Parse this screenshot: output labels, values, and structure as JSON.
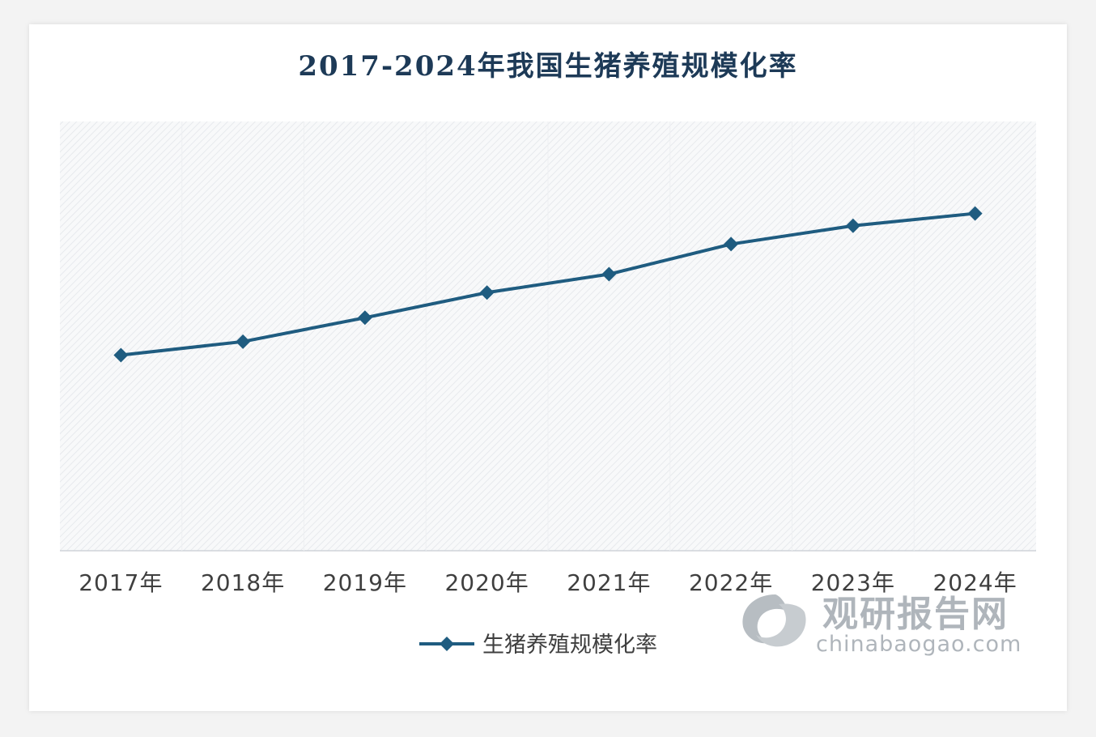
{
  "chart_data": {
    "type": "line",
    "title": "2017-2024年我国生猪养殖规模化率",
    "categories": [
      "2017年",
      "2018年",
      "2019年",
      "2020年",
      "2021年",
      "2022年",
      "2023年",
      "2024年"
    ],
    "series": [
      {
        "name": "生猪养殖规模化率",
        "values": [
          46.9,
          49.1,
          53.0,
          57.1,
          60.1,
          65.0,
          68.0,
          70.0
        ]
      }
    ],
    "ylim": [
      15,
      85
    ],
    "grid": false,
    "legend": "bottom",
    "line_color": "#1f5c80",
    "background_pattern": "diagonal-hatch"
  },
  "watermark": {
    "name_cn": "观研报告网",
    "url": "chinabaogao.com",
    "color": "#6f7a84",
    "icon": "swirl-logo-icon"
  }
}
